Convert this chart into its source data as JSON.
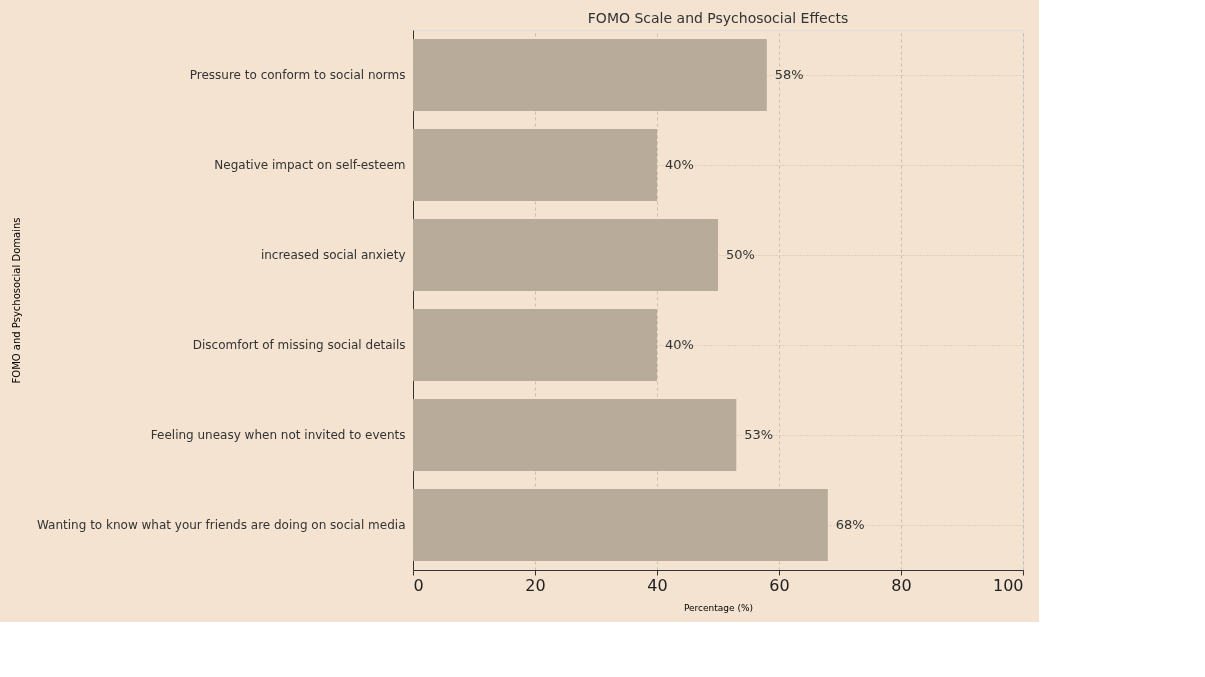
{
  "chart_data": {
    "type": "bar",
    "orientation": "horizontal",
    "title": "FOMO Scale and Psychosocial Effects",
    "xlabel": "Percentage (%)",
    "ylabel": "FOMO and Psychosocial Domains",
    "categories": [
      "Pressure to conform to social norms",
      "Negative impact on self-esteem",
      "increased social anxiety",
      "Discomfort of missing social details",
      "Feeling uneasy when not invited to events",
      "Wanting to know what your friends are doing on social media"
    ],
    "values": [
      58,
      40,
      50,
      40,
      53,
      68
    ],
    "value_labels": [
      "58%",
      "40%",
      "50%",
      "40%",
      "53%",
      "68%"
    ],
    "color": "#b8ab9a",
    "xlim": [
      0,
      100
    ],
    "xticks": [
      0,
      20,
      40,
      60,
      80,
      100
    ],
    "grid": true
  }
}
